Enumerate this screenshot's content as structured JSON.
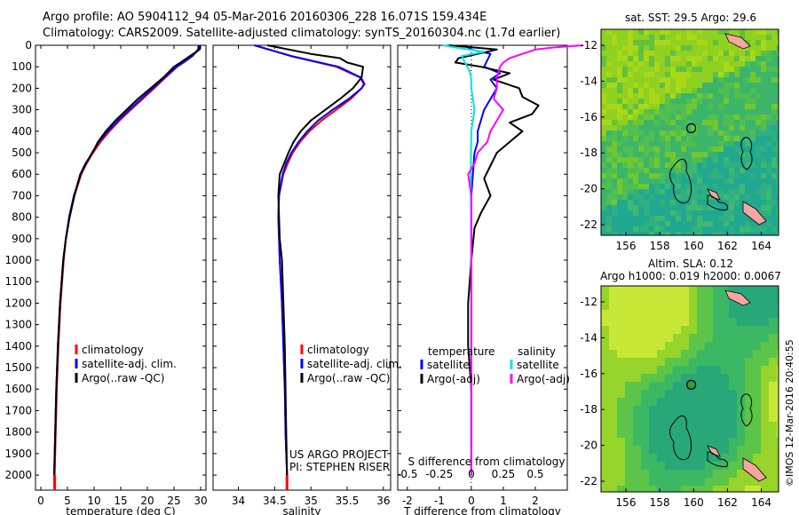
{
  "header": {
    "line1": "Argo profile: AO 5904112_94 05-Mar-2016 20160306_228 16.071S 159.434E",
    "line2": "Climatology: CARS2009. Satellite-adjusted climatology: synTS_20160304.nc (1.7d earlier)"
  },
  "project": {
    "line1": "US ARGO PROJECT",
    "line2": "PI: STEPHEN RISER"
  },
  "credit": "©IMOS 12-Mar-2016 20:40:55",
  "colors": {
    "red": "#ff0000",
    "blue": "#0000ff",
    "black": "#000000",
    "cyan": "#00e5e5",
    "magenta": "#ff00ff"
  },
  "depth_ticks": [
    0,
    100,
    200,
    300,
    400,
    500,
    600,
    700,
    800,
    900,
    1000,
    1100,
    1200,
    1300,
    1400,
    1500,
    1600,
    1700,
    1800,
    1900,
    2000
  ],
  "chart_data": [
    {
      "type": "line",
      "id": "temperature",
      "xlabel": "temperature (deg C)",
      "xlim": [
        -1,
        31
      ],
      "ylim": [
        2070,
        0
      ],
      "xticks": [
        0,
        5,
        10,
        15,
        20,
        25,
        30
      ],
      "legend": [
        "climatology",
        "satellite-adj. clim.",
        "Argo(..raw -QC)"
      ],
      "series": [
        {
          "name": "climatology",
          "color": "red",
          "depth": [
            0,
            20,
            50,
            80,
            100,
            150,
            200,
            250,
            300,
            350,
            400,
            450,
            500,
            550,
            600,
            700,
            800,
            900,
            1000,
            1200,
            1400,
            1600,
            1800,
            2000,
            2050
          ],
          "values": [
            29.8,
            29.6,
            28.5,
            26.8,
            25.6,
            23.4,
            21.3,
            19.1,
            16.9,
            14.8,
            12.9,
            11.2,
            9.8,
            8.6,
            7.6,
            6.3,
            5.4,
            4.7,
            4.3,
            3.7,
            3.3,
            3.0,
            2.8,
            2.6,
            2.6
          ]
        },
        {
          "name": "satellite-adj. clim.",
          "color": "blue",
          "depth": [
            0,
            20,
            50,
            80,
            100,
            150,
            200,
            250,
            300,
            350,
            400,
            450,
            500,
            550,
            600,
            700,
            800,
            900,
            1000,
            1200,
            1400,
            1600,
            1800,
            2000,
            2050
          ],
          "values": [
            29.6,
            29.5,
            28.4,
            26.7,
            25.5,
            23.2,
            21.0,
            18.8,
            16.6,
            14.5,
            12.6,
            10.9,
            9.6,
            8.5,
            7.5,
            6.2,
            5.3,
            4.7,
            4.2,
            3.6,
            3.2,
            2.9,
            2.7,
            2.5,
            2.5
          ]
        },
        {
          "name": "Argo(..raw -QC)",
          "color": "black",
          "depth": [
            0,
            20,
            50,
            80,
            100,
            150,
            200,
            250,
            300,
            350,
            400,
            450,
            500,
            550,
            600,
            700,
            800,
            900,
            1000,
            1200,
            1400,
            1600,
            1800,
            2000,
            2050
          ],
          "values": [
            29.9,
            29.8,
            28.0,
            26.2,
            25.0,
            23.0,
            20.6,
            18.2,
            16.1,
            14.0,
            12.2,
            10.7,
            9.7,
            8.4,
            7.4,
            6.3,
            5.4,
            4.7,
            4.2,
            3.6,
            3.2,
            2.9,
            2.7,
            2.5,
            2.5
          ]
        }
      ]
    },
    {
      "type": "line",
      "id": "salinity",
      "xlabel": "salinity",
      "xlim": [
        33.65,
        36.1
      ],
      "ylim": [
        2070,
        0
      ],
      "xticks": [
        34,
        34.5,
        35,
        35.5,
        36
      ],
      "legend": [
        "climatology",
        "satellite-adj. clim.",
        "Argo(..raw -QC)"
      ],
      "series": [
        {
          "name": "climatology",
          "color": "red",
          "depth": [
            0,
            50,
            100,
            150,
            180,
            200,
            250,
            300,
            350,
            400,
            450,
            500,
            550,
            600,
            700,
            800,
            900,
            1000,
            1200,
            1400,
            1600,
            1800,
            2000,
            2050
          ],
          "values": [
            34.22,
            34.72,
            35.35,
            35.68,
            35.73,
            35.7,
            35.55,
            35.35,
            35.15,
            34.98,
            34.85,
            34.75,
            34.68,
            34.62,
            34.56,
            34.55,
            34.56,
            34.57,
            34.6,
            34.62,
            34.64,
            34.65,
            34.67,
            34.67
          ]
        },
        {
          "name": "satellite-adj. clim.",
          "color": "blue",
          "depth": [
            0,
            50,
            100,
            150,
            180,
            200,
            250,
            300,
            350,
            400,
            450,
            500,
            550,
            600,
            700,
            800,
            900,
            1000,
            1200,
            1400,
            1600,
            1800,
            2000,
            2050
          ],
          "values": [
            34.22,
            34.73,
            35.38,
            35.69,
            35.74,
            35.7,
            35.52,
            35.3,
            35.1,
            34.95,
            34.83,
            34.73,
            34.66,
            34.61,
            34.56,
            34.55,
            34.56,
            34.57,
            34.6,
            34.62,
            34.64,
            34.65,
            34.67,
            34.67
          ]
        },
        {
          "name": "Argo(..raw -QC)",
          "color": "black",
          "depth": [
            0,
            40,
            60,
            80,
            100,
            150,
            200,
            250,
            300,
            350,
            400,
            450,
            500,
            550,
            600,
            700,
            800,
            900,
            1000,
            1200,
            1400,
            1600,
            1800,
            2000
          ],
          "values": [
            34.4,
            35.0,
            35.4,
            35.5,
            35.72,
            35.7,
            35.58,
            35.4,
            35.2,
            35.0,
            34.86,
            34.76,
            34.69,
            34.63,
            34.57,
            34.55,
            34.56,
            34.57,
            34.6,
            34.62,
            34.64,
            34.65,
            34.66,
            34.67
          ]
        }
      ]
    },
    {
      "type": "line",
      "id": "difference",
      "xlabel": "T difference from climatology",
      "xlabel_top": "S difference from climatology",
      "xlim": [
        -2.3,
        3.0
      ],
      "ylim": [
        2070,
        0
      ],
      "xticks": [
        -2,
        -1,
        0,
        1,
        2
      ],
      "top_ticks": [
        "-0.5",
        "-0.25",
        "0",
        "0.25",
        "0.5"
      ],
      "top_ticks_x": [
        -2,
        -1,
        0,
        1,
        2
      ],
      "legend_headers": [
        "temperature",
        "salinity"
      ],
      "legend_left": [
        "satellite",
        "Argo(-adj)"
      ],
      "legend_right": [
        "satellite",
        "Argo(-adj)"
      ],
      "series": [
        {
          "name": "temperature satellite",
          "color": "blue",
          "depth": [
            0,
            20,
            40,
            70,
            100,
            130,
            160,
            200,
            250,
            300,
            350,
            400,
            450,
            500,
            600,
            700,
            800,
            1000,
            1500,
            2000
          ],
          "values": [
            -0.2,
            0.0,
            0.6,
            0.5,
            0.4,
            0.9,
            0.6,
            0.8,
            0.6,
            0.4,
            0.3,
            0.2,
            0.2,
            0.1,
            0.05,
            0.0,
            0.0,
            0.0,
            0.0,
            0.0
          ]
        },
        {
          "name": "temperature Argo(-adj)",
          "color": "black",
          "depth": [
            0,
            20,
            40,
            60,
            80,
            100,
            130,
            160,
            200,
            240,
            280,
            320,
            360,
            400,
            450,
            500,
            560,
            620,
            700,
            780,
            850,
            1000,
            1200,
            1400,
            1600,
            1800,
            2000
          ],
          "values": [
            -0.7,
            0.8,
            0.2,
            -0.4,
            -0.5,
            0.3,
            1.2,
            0.7,
            1.5,
            1.6,
            2.1,
            1.9,
            1.2,
            1.6,
            1.2,
            0.8,
            0.6,
            0.4,
            0.6,
            0.3,
            0.1,
            0.0,
            -0.1,
            -0.1,
            0.0,
            0.0,
            0.0
          ]
        },
        {
          "name": "salinity satellite",
          "color": "cyan",
          "depth": [
            0,
            15,
            30,
            50,
            80,
            120,
            160,
            200,
            300,
            400,
            600,
            900,
            1200,
            1500,
            1800,
            2000
          ],
          "values": [
            -0.9,
            -0.3,
            0.4,
            -0.3,
            -0.2,
            -0.05,
            0.0,
            0.0,
            0.1,
            0.0,
            -0.02,
            0.0,
            0.0,
            0.0,
            0.0,
            0.0
          ]
        },
        {
          "name": "salinity Argo(-adj)",
          "color": "magenta",
          "depth": [
            0,
            10,
            20,
            40,
            60,
            80,
            100,
            150,
            200,
            250,
            300,
            350,
            400,
            450,
            500,
            550,
            600,
            700,
            800,
            1000,
            1500,
            2000
          ],
          "values": [
            3.5,
            2.6,
            2.0,
            1.6,
            1.2,
            1.0,
            0.9,
            0.8,
            0.8,
            0.7,
            1.0,
            0.8,
            0.6,
            0.5,
            0.2,
            0.1,
            -0.1,
            0.0,
            0.0,
            0.0,
            0.0,
            0.0
          ]
        }
      ]
    }
  ],
  "maps": [
    {
      "id": "sst",
      "title": "sat. SST: 29.5  Argo: 29.6",
      "yticks": [
        "-12",
        "-14",
        "-16",
        "-18",
        "-20",
        "-22"
      ],
      "xticks": [
        "156",
        "158",
        "160",
        "162",
        "164"
      ],
      "marker_filled": false
    },
    {
      "id": "sla",
      "title1": "Altim. SLA: 0.12",
      "title2": "Argo h1000: 0.019 h2000: 0.0067",
      "yticks": [
        "-12",
        "-14",
        "-16",
        "-18",
        "-20",
        "-22"
      ],
      "xticks": [
        "156",
        "158",
        "160",
        "162",
        "164"
      ],
      "marker_filled": true
    }
  ]
}
